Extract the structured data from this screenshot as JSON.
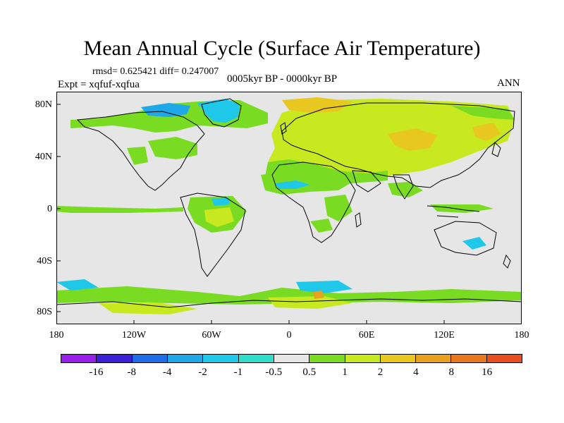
{
  "title": "Mean Annual Cycle (Surface Air Temperature)",
  "stats": "rmsd= 0.625421  diff= 0.247007",
  "expt": "Expt = xqfuf-xqfua",
  "period": "0005kyr BP - 0000kyr BP",
  "season": "ANN",
  "y_ticks": [
    "80N",
    "40N",
    "0",
    "40S",
    "80S"
  ],
  "x_ticks": [
    "180",
    "120W",
    "60W",
    "0",
    "60E",
    "120E",
    "180"
  ],
  "colorbar": {
    "colors": [
      "#9a1fe8",
      "#3a1fd6",
      "#1f6ee8",
      "#1fa8e8",
      "#1fc8e8",
      "#30dccc",
      "#e6e6e6",
      "#7adc22",
      "#c8e81f",
      "#e8c81f",
      "#e8a01f",
      "#e8781f",
      "#e84e1f"
    ],
    "labels": [
      "-16",
      "-8",
      "-4",
      "-2",
      "-1",
      "-0.5",
      "0.5",
      "1",
      "2",
      "4",
      "8",
      "16"
    ]
  },
  "colors": {
    "ocean_bg": "#e6e6e6",
    "green": "#7adc22",
    "yellowgreen": "#c8e81f",
    "gold": "#e8c81f",
    "orange": "#e8a01f",
    "cyan": "#1fc8e8",
    "blue": "#1fa8e8"
  }
}
